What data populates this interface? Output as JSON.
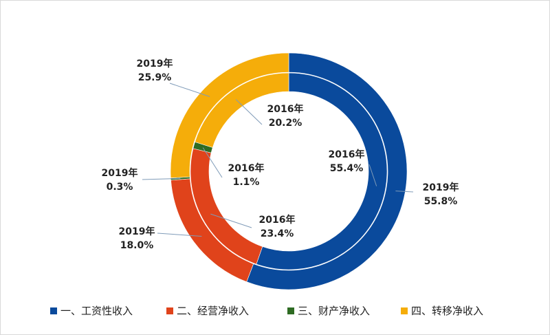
{
  "chart_data": {
    "type": "pie",
    "variant": "double-ring-donut",
    "categories": [
      "一、工资性收入",
      "二、经营净收入",
      "三、财产净收入",
      "四、转移净收入"
    ],
    "colors": [
      "#0a4a9c",
      "#e0431b",
      "#2e6b23",
      "#f5ad0a"
    ],
    "series": [
      {
        "name": "2019年",
        "ring": "outer",
        "values": [
          55.8,
          18.0,
          0.3,
          25.9
        ],
        "labels": [
          "55.8%",
          "18.0%",
          "0.3%",
          "25.9%"
        ]
      },
      {
        "name": "2016年",
        "ring": "inner",
        "values": [
          55.4,
          23.4,
          1.1,
          20.2
        ],
        "labels": [
          "55.4%",
          "23.4%",
          "1.1%",
          "20.2%"
        ]
      }
    ],
    "legend": {
      "placement": "bottom"
    },
    "title": ""
  }
}
